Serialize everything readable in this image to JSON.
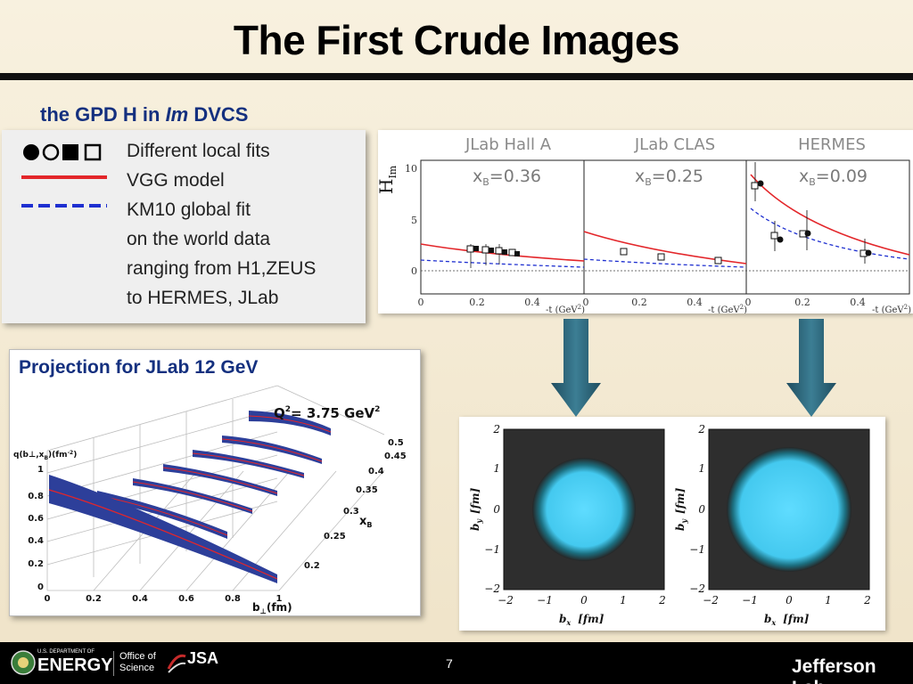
{
  "slide": {
    "title": "The First Crude Images",
    "page_number": "7"
  },
  "gpd_section": {
    "heading_prefix": "the GPD H in ",
    "heading_italic": "Im",
    "heading_suffix": " DVCS",
    "legend_lines": [
      "Different local fits",
      "VGG model",
      "KM10 global fit",
      "on the world data",
      "ranging from H1,ZEUS",
      "to HERMES, JLab"
    ]
  },
  "gpd_plot": {
    "ylabel_main": "H",
    "ylabel_sub": "Im",
    "panels": [
      {
        "experiment": "JLab Hall A",
        "xb_label": "x",
        "xb_sub": "B",
        "xb_value": "=0.36"
      },
      {
        "experiment": "JLab CLAS",
        "xb_label": "x",
        "xb_sub": "B",
        "xb_value": "=0.25"
      },
      {
        "experiment": "HERMES",
        "xb_label": "x",
        "xb_sub": "B",
        "xb_value": "=0.09"
      }
    ],
    "y_ticks": [
      "10",
      "5",
      "0"
    ],
    "x_ticks": [
      [
        "0",
        "0.2",
        "0.4"
      ],
      [
        "0",
        "0.2",
        "0.4"
      ],
      [
        "0",
        "0.2",
        "0.4"
      ]
    ],
    "x_unit": "-t (GeV",
    "x_unit_sup": "2",
    "x_unit_end": ")"
  },
  "projection": {
    "title": "Projection for JLab 12 GeV",
    "q2_label": "Q",
    "q2_sup": "2",
    "q2_value": "= 3.75 GeV",
    "q2_value_sup": "2",
    "zlabel": "q(b⊥,x",
    "zlabel_sub": "B",
    "zlabel_end": ")(fm",
    "zlabel_sup": "-2",
    "zlabel_close": ")",
    "z_ticks": [
      "1",
      "0.8",
      "0.6",
      "0.4",
      "0.2",
      "0"
    ],
    "b_ticks": [
      "0",
      "0.2",
      "0.4",
      "0.6",
      "0.8",
      "1"
    ],
    "b_label": "b",
    "b_label_sub": "⊥",
    "b_unit": "(fm)",
    "xb_ticks": [
      "0.5",
      "0.45",
      "0.4",
      "0.35",
      "0.3",
      "0.25",
      "0.2"
    ],
    "xb_axis_label": "x",
    "xb_axis_sub": "B"
  },
  "images": {
    "ticks": [
      "2",
      "1",
      "0",
      "−1",
      "−2"
    ],
    "x_ticks": [
      "−2",
      "−1",
      "0",
      "1",
      "2"
    ],
    "y_axis": "b",
    "y_axis_sub": "y",
    "x_axis": "b",
    "x_axis_sub": "x",
    "unit": "[fm]"
  },
  "footer": {
    "doe_small": "U.S. DEPARTMENT OF",
    "doe_word": "ENERGY",
    "office": "Office of Science",
    "jsa": "JSA",
    "jlab": "Jefferson Lab"
  },
  "colors": {
    "heading_blue": "#14307f",
    "vgg_red": "#e3262a",
    "km10_blue": "#1e2fd0",
    "arrow_teal": "#2a6478",
    "band_blue": "#2d3f9a",
    "image_cyan": "#4fd6f2"
  }
}
